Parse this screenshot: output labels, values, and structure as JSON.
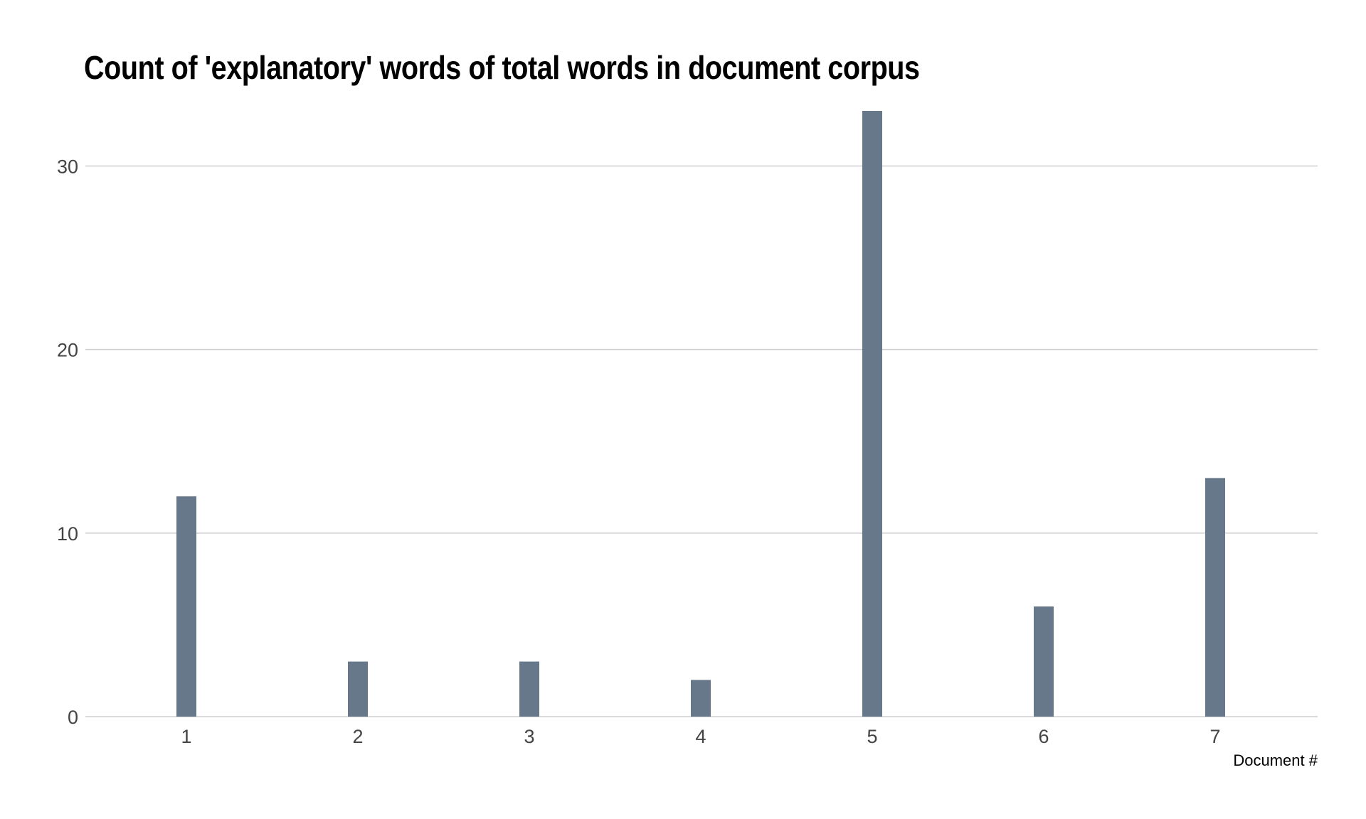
{
  "chart_data": {
    "type": "bar",
    "title": "Count of 'explanatory' words of total words in document corpus",
    "xlabel": "Document #",
    "ylabel": "",
    "categories": [
      "1",
      "2",
      "3",
      "4",
      "5",
      "6",
      "7"
    ],
    "values": [
      12,
      3,
      3,
      2,
      33,
      6,
      13
    ],
    "ylim": [
      0,
      33
    ],
    "yticks": [
      0,
      10,
      20,
      30
    ],
    "grid": true,
    "legend": "none",
    "bar_color": "#67788a",
    "grid_color": "#cfcfd2"
  }
}
